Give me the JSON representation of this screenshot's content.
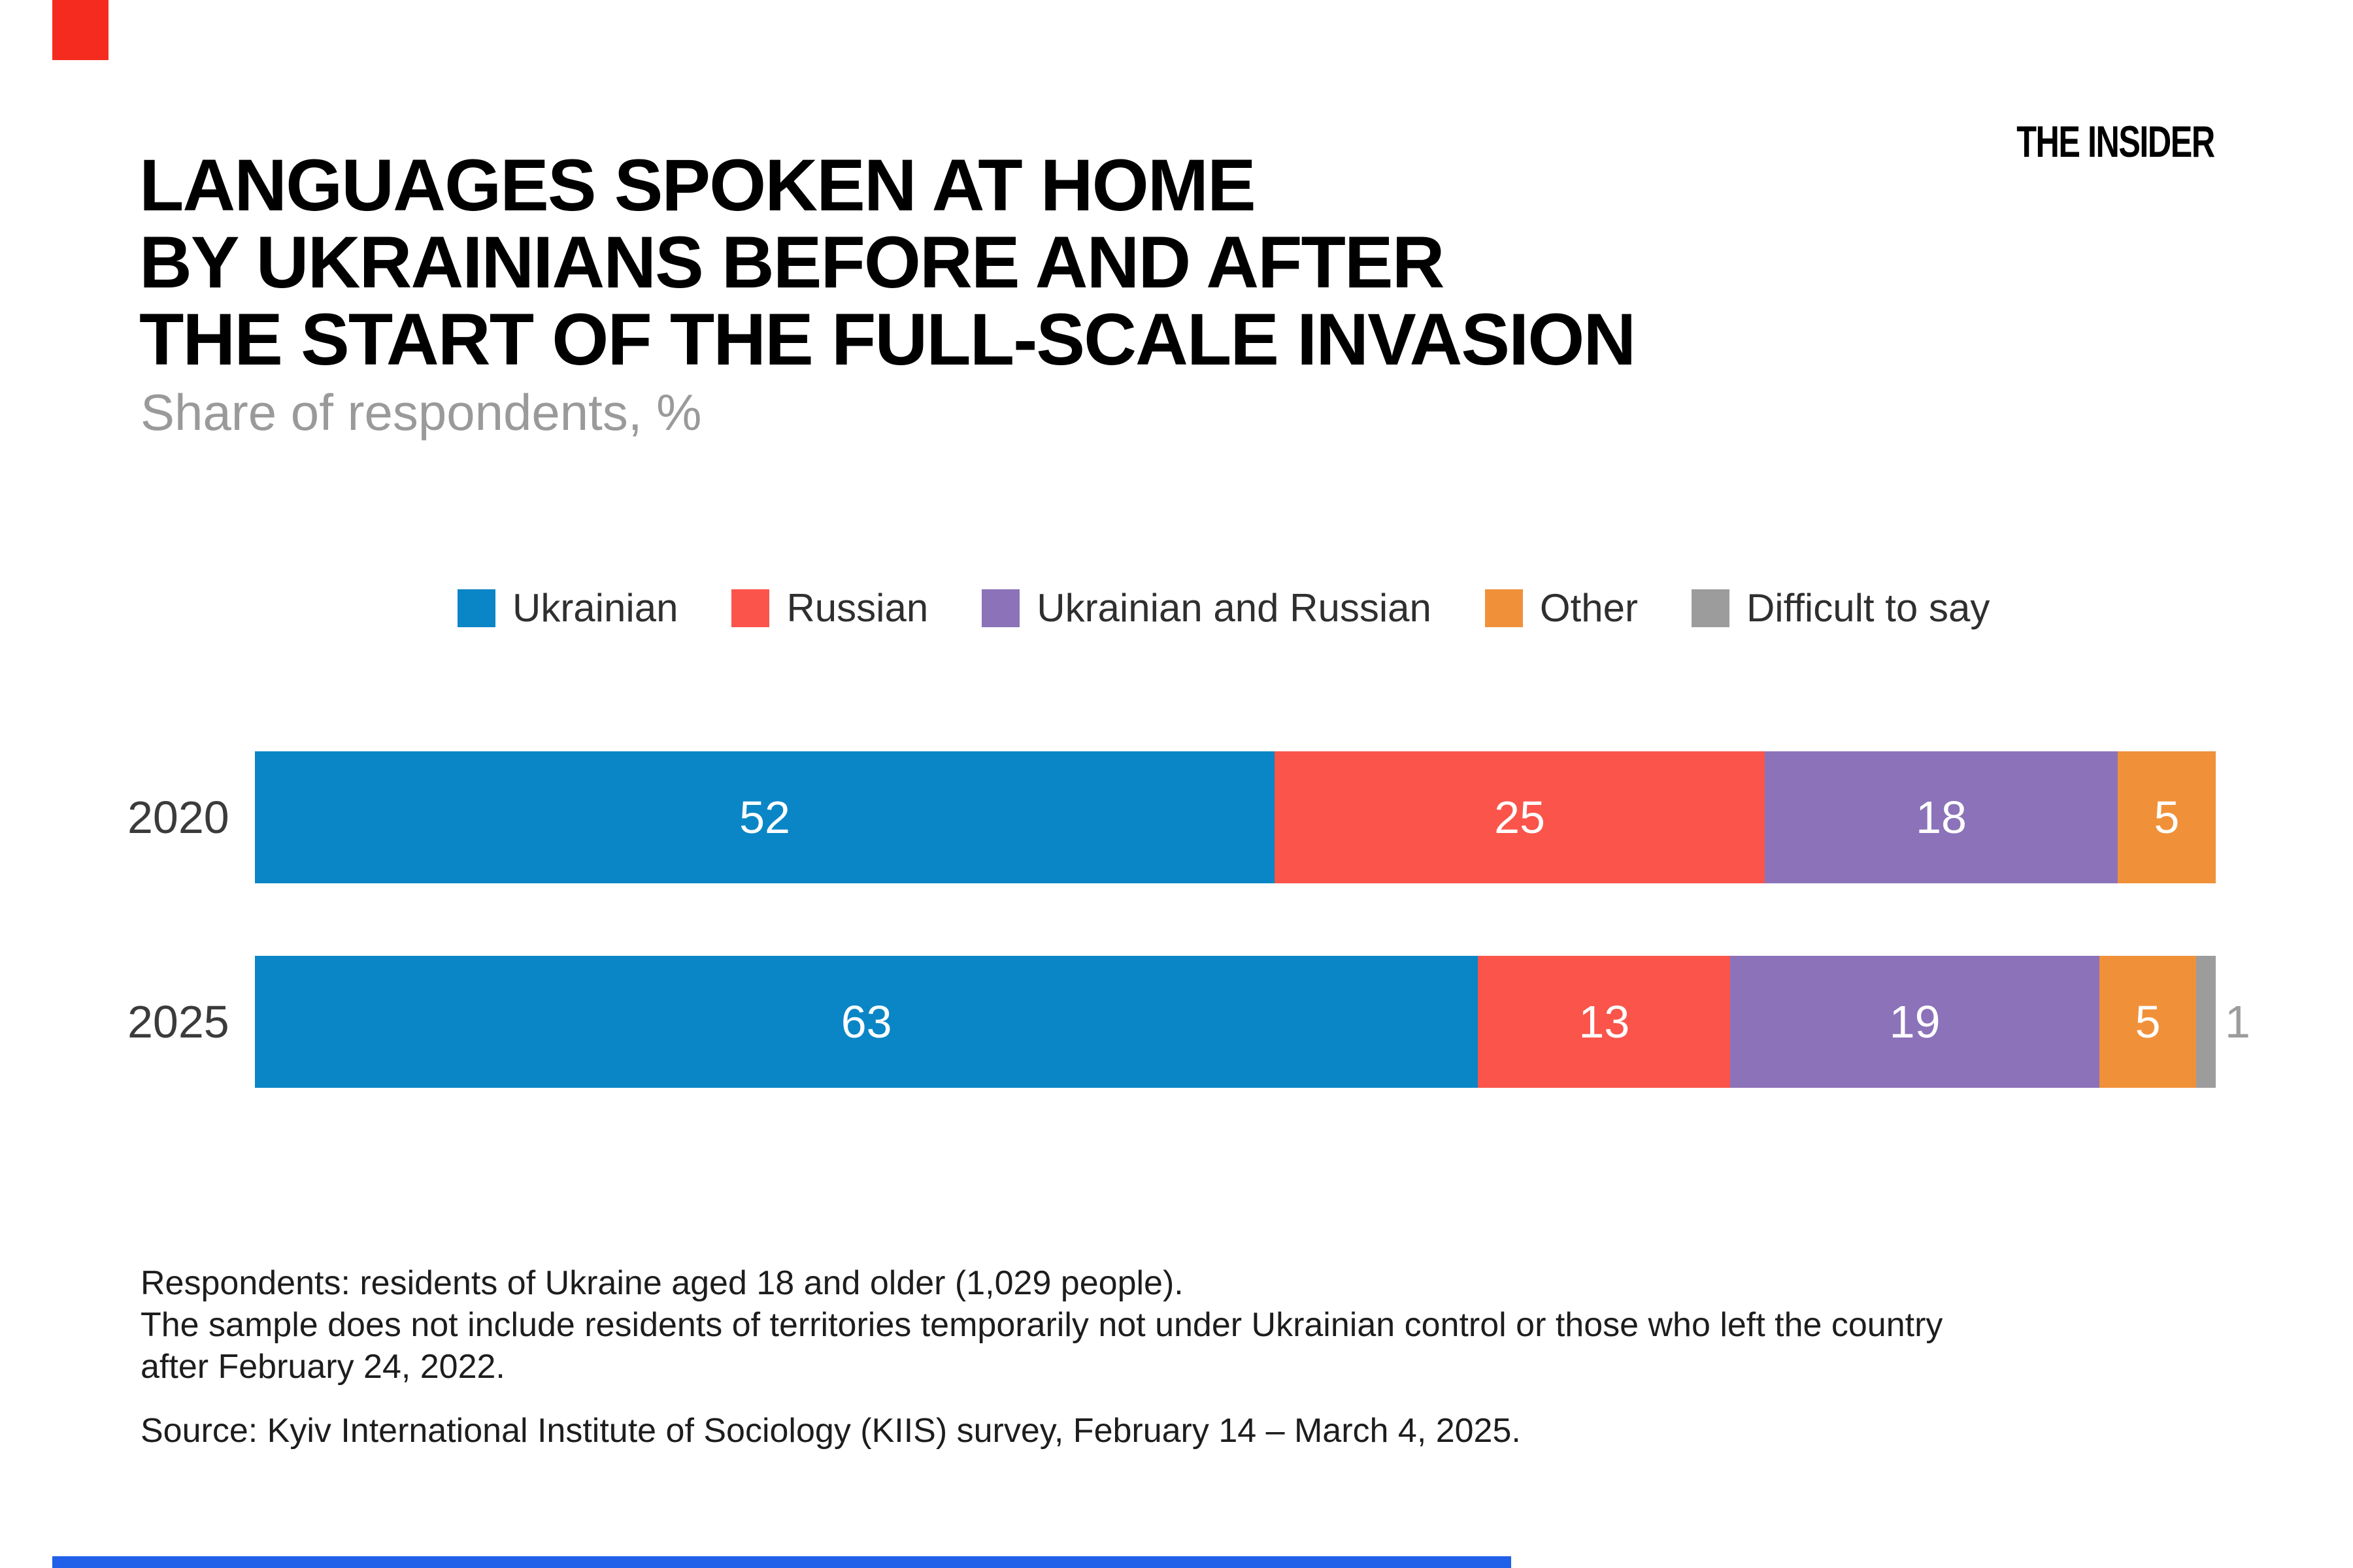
{
  "branding": {
    "logo_text": "THE INSIDER",
    "corner_mark_color": "#F62B20",
    "bottom_strip_color": "#2160E8"
  },
  "header": {
    "title": "LANGUAGES SPOKEN AT HOME\nBY UKRAINIANS BEFORE AND AFTER\nTHE START OF THE FULL-SCALE INVASION",
    "subtitle": "Share of respondents, %"
  },
  "chart_data": {
    "type": "bar",
    "orientation": "horizontal-stacked",
    "unit": "%",
    "title": "Languages spoken at home by Ukrainians before and after the start of the full-scale invasion",
    "categories": [
      "2020",
      "2025"
    ],
    "series": [
      {
        "name": "Ukrainian",
        "color": "#0A86C6",
        "values": [
          52,
          63
        ]
      },
      {
        "name": "Russian",
        "color": "#FA544B",
        "values": [
          25,
          13
        ]
      },
      {
        "name": "Ukrainian and Russian",
        "color": "#8C72B9",
        "values": [
          18,
          19
        ]
      },
      {
        "name": "Other",
        "color": "#F0913A",
        "values": [
          5,
          5
        ]
      },
      {
        "name": "Difficult to say",
        "color": "#9C9C9C",
        "values": [
          0,
          1
        ]
      }
    ],
    "xlim": [
      0,
      100
    ],
    "grid": false,
    "legend_position": "top",
    "value_labels": "white inside segments; tiny values shown outside in gray",
    "small_value_threshold": 3,
    "colors": {
      "value_label": "#FFFFFF",
      "outside_value_label": "#9C9C9C",
      "category_label": "#3B3B3B",
      "legend_label": "#2F2F2F"
    }
  },
  "footer": {
    "notes": "Respondents: residents of Ukraine aged 18 and older (1,029 people).\nThe sample does not include residents of territories temporarily not under Ukrainian control or those who left the country\nafter February 24, 2022.",
    "source": "Source: Kyiv International Institute of Sociology (KIIS) survey, February 14 – March 4, 2025."
  },
  "layout_rows": [
    {
      "top": 1150
    },
    {
      "top": 1463
    }
  ]
}
